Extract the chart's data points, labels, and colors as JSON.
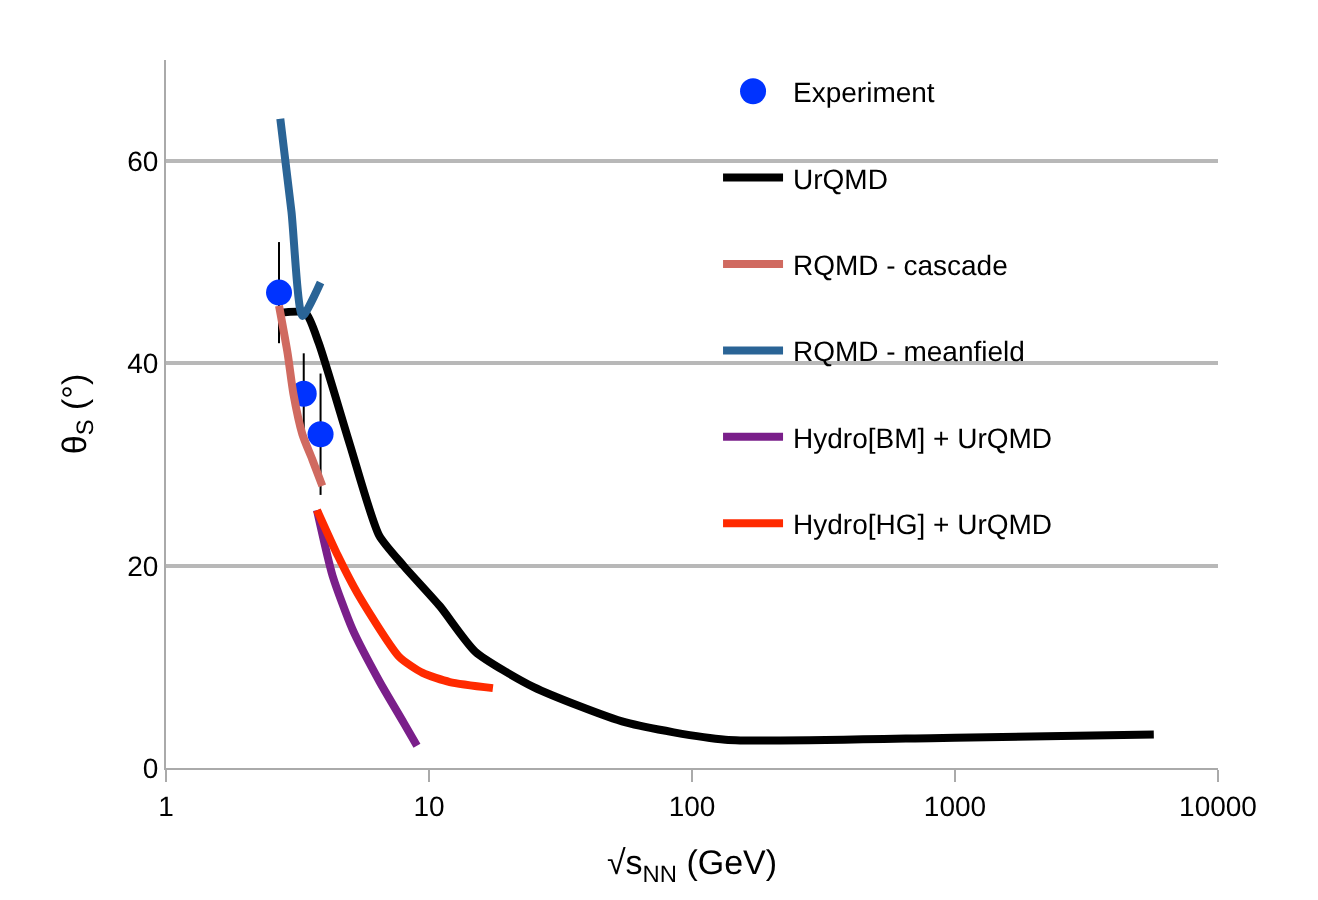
{
  "chart_data": {
    "type": "line",
    "xlabel": "√s$_{NN}$ (GeV)",
    "ylabel": "θ$_{S}$ (°)",
    "log": "x",
    "xlim": [
      1,
      10000
    ],
    "xticks": [
      1,
      10,
      100,
      1000,
      10000
    ],
    "ylim": [
      0,
      70
    ],
    "yticks": [
      0,
      20,
      40,
      60
    ],
    "grid": "y",
    "legend": "top right",
    "line_style": "solid",
    "series": [
      {
        "name": "Experiment",
        "type": "scatter",
        "marker": "circle",
        "color": "#0033ff",
        "x": [
          2.69,
          3.34,
          3.87
        ],
        "values": [
          47,
          37,
          33
        ],
        "errors": [
          5,
          4,
          6
        ]
      },
      {
        "name": "UrQMD",
        "color": "#000000",
        "x": [
          2.69,
          3.39,
          3.81,
          5,
          6.46,
          8,
          11,
          15,
          25,
          56,
          134,
          1000,
          5700
        ],
        "values": [
          45,
          45,
          42,
          32,
          23,
          20,
          16,
          11.5,
          8,
          4.5,
          2.8,
          3.0,
          3.3
        ]
      },
      {
        "name": "RQMD - cascade",
        "color": "#d06a60",
        "x": [
          2.69,
          2.9,
          3.05,
          3.3,
          3.6,
          3.93
        ],
        "values": [
          45.7,
          41,
          37,
          33,
          30.5,
          27.9
        ]
      },
      {
        "name": "RQMD - meanfield",
        "color": "#2a6496",
        "x": [
          2.72,
          3.0,
          3.3,
          3.87
        ],
        "values": [
          64.2,
          55,
          44.7,
          48
        ]
      },
      {
        "name": "Hydro[BM] + UrQMD",
        "color": "#7a1f8a",
        "x": [
          3.75,
          4.3,
          5.12,
          6.5,
          8.0,
          9.0
        ],
        "values": [
          25.5,
          19,
          13.7,
          8.5,
          4.5,
          2.2
        ]
      },
      {
        "name": "Hydro[HG] + UrQMD",
        "color": "#ff2a00",
        "x": [
          3.75,
          4.5,
          5.42,
          7.7,
          9.46,
          12,
          17.5
        ],
        "values": [
          25.5,
          21,
          17,
          11,
          9.4,
          8.5,
          7.9
        ]
      }
    ]
  }
}
